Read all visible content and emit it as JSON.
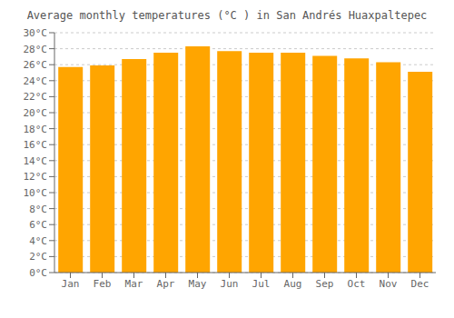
{
  "chart_data": {
    "type": "bar",
    "title": "Average monthly temperatures (°C ) in San Andrés Huaxpaltepec",
    "categories": [
      "Jan",
      "Feb",
      "Mar",
      "Apr",
      "May",
      "Jun",
      "Jul",
      "Aug",
      "Sep",
      "Oct",
      "Nov",
      "Dec"
    ],
    "values": [
      25.7,
      25.9,
      26.7,
      27.5,
      28.3,
      27.7,
      27.5,
      27.5,
      27.1,
      26.8,
      26.3,
      25.1
    ],
    "color": "#FFA500",
    "ylim": [
      0,
      30
    ],
    "yticks": [
      {
        "value": 0,
        "label": "0°C"
      },
      {
        "value": 2,
        "label": "2°C"
      },
      {
        "value": 4,
        "label": "4°C"
      },
      {
        "value": 6,
        "label": "6°C"
      },
      {
        "value": 8,
        "label": "8°C"
      },
      {
        "value": 10,
        "label": "10°C"
      },
      {
        "value": 12,
        "label": "12°C"
      },
      {
        "value": 14,
        "label": "14°C"
      },
      {
        "value": 16,
        "label": "16°C"
      },
      {
        "value": 18,
        "label": "18°C"
      },
      {
        "value": 20,
        "label": "20°C"
      },
      {
        "value": 22,
        "label": "22°C"
      },
      {
        "value": 24,
        "label": "24°C"
      },
      {
        "value": 26,
        "label": "26°C"
      },
      {
        "value": 28,
        "label": "28°C"
      },
      {
        "value": 30,
        "label": "30°C"
      }
    ],
    "grid": true
  }
}
